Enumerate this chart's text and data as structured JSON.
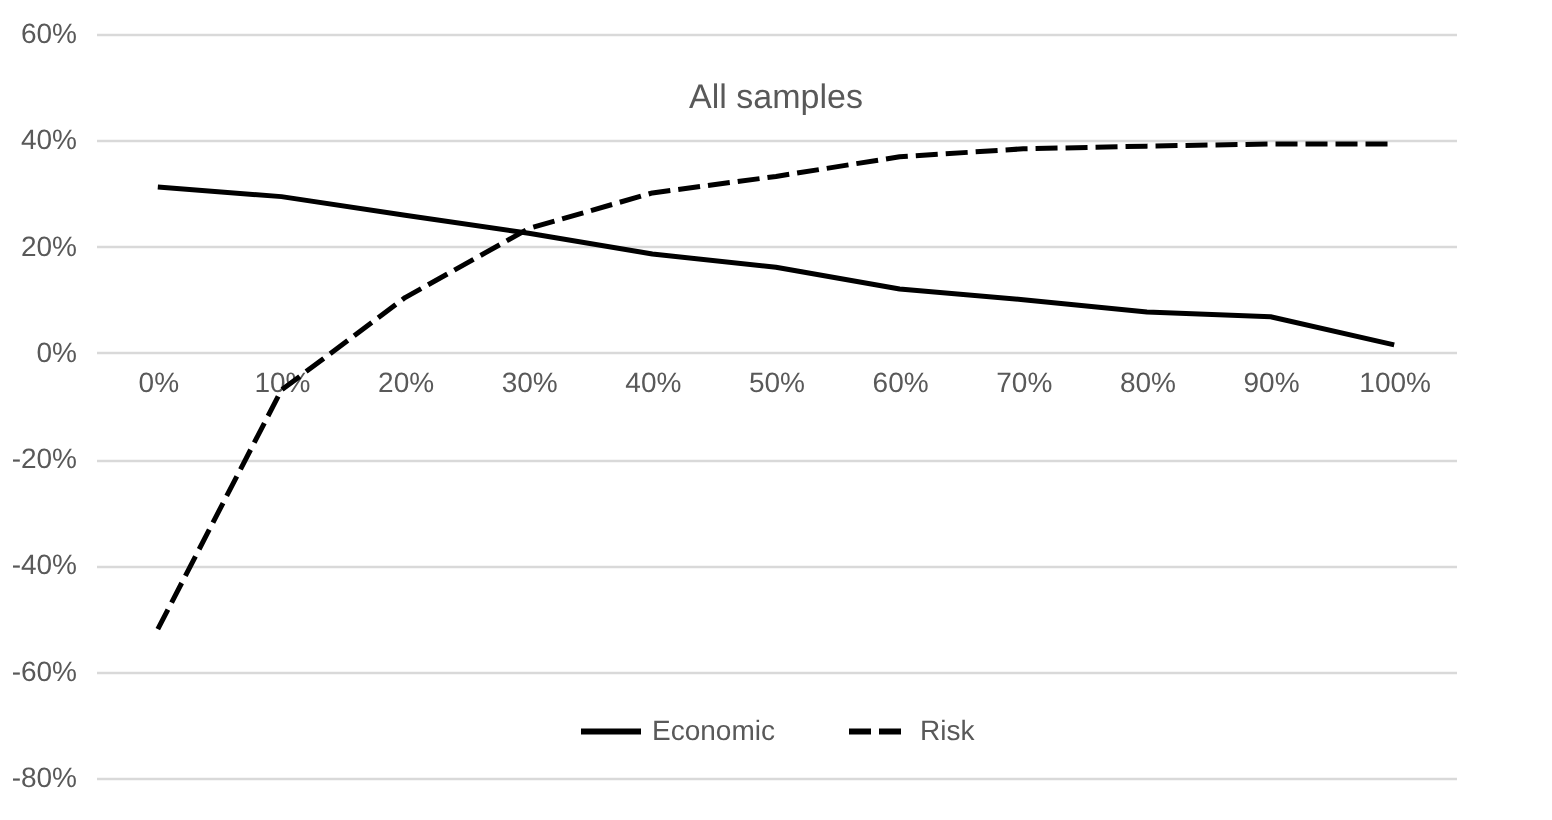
{
  "chart_data": {
    "type": "line",
    "title": "All samples",
    "categories": [
      "0%",
      "10%",
      "20%",
      "30%",
      "40%",
      "50%",
      "60%",
      "70%",
      "80%",
      "90%",
      "100%"
    ],
    "series": [
      {
        "name": "Economic",
        "color": "#000000",
        "line_style": "solid",
        "values": [
          31.2,
          29.4,
          25.9,
          22.5,
          18.6,
          16.1,
          12,
          10,
          7.7,
          6.8,
          1.5
        ]
      },
      {
        "name": "Risk",
        "color": "#000000",
        "line_style": "dashed",
        "values": [
          -52,
          -7,
          10.4,
          23.4,
          30.1,
          33.2,
          36.9,
          38.4,
          38.9,
          39.3,
          39.3
        ]
      }
    ],
    "ylim": [
      -80,
      60
    ],
    "yticks": [
      {
        "value": -80,
        "label": "-80%"
      },
      {
        "value": -60,
        "label": "-60%"
      },
      {
        "value": -40,
        "label": "-40%"
      },
      {
        "value": -20,
        "label": "-20%"
      },
      {
        "value": 0,
        "label": "0%"
      },
      {
        "value": 20,
        "label": "20%"
      },
      {
        "value": 40,
        "label": "40%"
      },
      {
        "value": 60,
        "label": "60%"
      }
    ],
    "grid": "y",
    "legend": "bottom",
    "marker": "none"
  }
}
